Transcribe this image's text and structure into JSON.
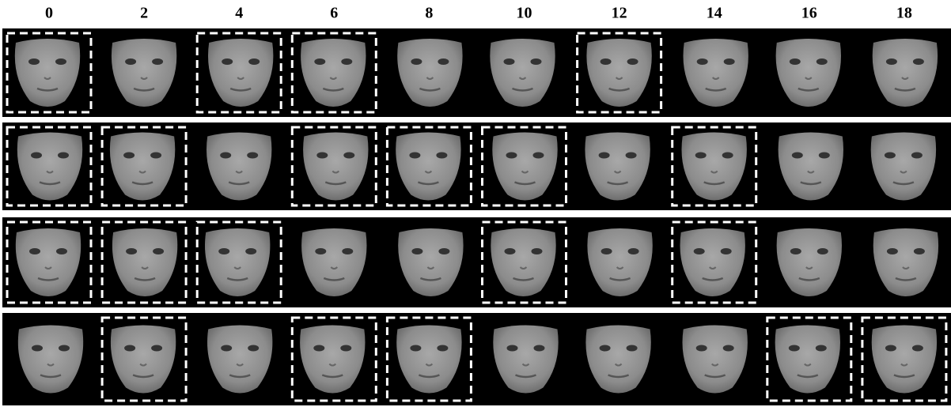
{
  "columns": [
    "0",
    "2",
    "4",
    "6",
    "8",
    "10",
    "12",
    "14",
    "16",
    "18"
  ]
}
